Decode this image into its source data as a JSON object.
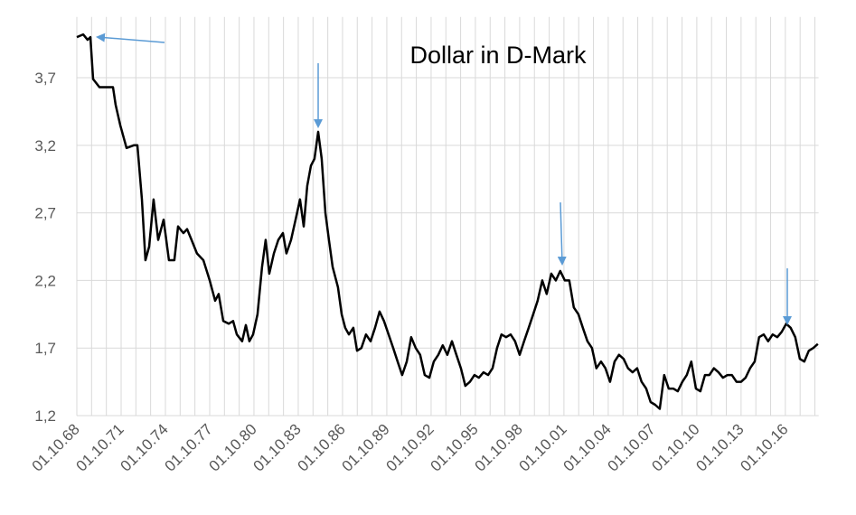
{
  "chart_data": {
    "type": "line",
    "title": "Dollar in D-Mark",
    "color": "#000000",
    "grid": true,
    "xlim": [
      1968.75,
      2019.0
    ],
    "ylim": [
      1.2,
      4.15
    ],
    "yticks": [
      {
        "value": 1.2,
        "label": "1,2"
      },
      {
        "value": 1.7,
        "label": "1,7"
      },
      {
        "value": 2.2,
        "label": "2,2"
      },
      {
        "value": 2.7,
        "label": "2,7"
      },
      {
        "value": 3.2,
        "label": "3,2"
      },
      {
        "value": 3.7,
        "label": "3,7"
      }
    ],
    "xticks": [
      {
        "value": 1968.75,
        "label": "01.10.68"
      },
      {
        "value": 1969.75,
        "label": null
      },
      {
        "value": 1970.75,
        "label": null
      },
      {
        "value": 1971.75,
        "label": "01.10.71"
      },
      {
        "value": 1972.75,
        "label": null
      },
      {
        "value": 1973.75,
        "label": null
      },
      {
        "value": 1974.75,
        "label": "01.10.74"
      },
      {
        "value": 1975.75,
        "label": null
      },
      {
        "value": 1976.75,
        "label": null
      },
      {
        "value": 1977.75,
        "label": "01.10.77"
      },
      {
        "value": 1978.75,
        "label": null
      },
      {
        "value": 1979.75,
        "label": null
      },
      {
        "value": 1980.75,
        "label": "01.10.80"
      },
      {
        "value": 1981.75,
        "label": null
      },
      {
        "value": 1982.75,
        "label": null
      },
      {
        "value": 1983.75,
        "label": "01.10.83"
      },
      {
        "value": 1984.75,
        "label": null
      },
      {
        "value": 1985.75,
        "label": null
      },
      {
        "value": 1986.75,
        "label": "01.10.86"
      },
      {
        "value": 1987.75,
        "label": null
      },
      {
        "value": 1988.75,
        "label": null
      },
      {
        "value": 1989.75,
        "label": "01.10.89"
      },
      {
        "value": 1990.75,
        "label": null
      },
      {
        "value": 1991.75,
        "label": null
      },
      {
        "value": 1992.75,
        "label": "01.10.92"
      },
      {
        "value": 1993.75,
        "label": null
      },
      {
        "value": 1994.75,
        "label": null
      },
      {
        "value": 1995.75,
        "label": "01.10.95"
      },
      {
        "value": 1996.75,
        "label": null
      },
      {
        "value": 1997.75,
        "label": null
      },
      {
        "value": 1998.75,
        "label": "01.10.98"
      },
      {
        "value": 1999.75,
        "label": null
      },
      {
        "value": 2000.75,
        "label": null
      },
      {
        "value": 2001.75,
        "label": "01.10.01"
      },
      {
        "value": 2002.75,
        "label": null
      },
      {
        "value": 2003.75,
        "label": null
      },
      {
        "value": 2004.75,
        "label": "01.10.04"
      },
      {
        "value": 2005.75,
        "label": null
      },
      {
        "value": 2006.75,
        "label": null
      },
      {
        "value": 2007.75,
        "label": "01.10.07"
      },
      {
        "value": 2008.75,
        "label": null
      },
      {
        "value": 2009.75,
        "label": null
      },
      {
        "value": 2010.75,
        "label": "01.10.10"
      },
      {
        "value": 2011.75,
        "label": null
      },
      {
        "value": 2012.75,
        "label": null
      },
      {
        "value": 2013.75,
        "label": "01.10.13"
      },
      {
        "value": 2014.75,
        "label": null
      },
      {
        "value": 2015.75,
        "label": null
      },
      {
        "value": 2016.75,
        "label": "01.10.16"
      },
      {
        "value": 2017.75,
        "label": null
      },
      {
        "value": 2018.75,
        "label": null
      }
    ],
    "x": [
      1968.75,
      1969.18,
      1969.48,
      1969.67,
      1969.85,
      1970.28,
      1971.2,
      1971.38,
      1971.69,
      1972.12,
      1972.61,
      1972.85,
      1973.16,
      1973.4,
      1973.65,
      1973.95,
      1974.26,
      1974.63,
      1974.99,
      1975.36,
      1975.61,
      1975.97,
      1976.22,
      1976.52,
      1976.89,
      1977.32,
      1977.75,
      1978.12,
      1978.36,
      1978.67,
      1979.04,
      1979.34,
      1979.59,
      1979.95,
      1980.2,
      1980.44,
      1980.69,
      1980.99,
      1981.3,
      1981.54,
      1981.79,
      1982.1,
      1982.4,
      1982.71,
      1982.95,
      1983.26,
      1983.57,
      1983.87,
      1984.12,
      1984.36,
      1984.61,
      1984.85,
      1985.1,
      1985.34,
      1985.59,
      1985.83,
      1986.08,
      1986.44,
      1986.69,
      1986.93,
      1987.18,
      1987.48,
      1987.73,
      1988.03,
      1988.34,
      1988.65,
      1988.95,
      1989.26,
      1989.56,
      1989.87,
      1990.18,
      1990.48,
      1990.79,
      1991.1,
      1991.4,
      1991.71,
      1992.01,
      1992.32,
      1992.63,
      1992.93,
      1993.24,
      1993.54,
      1993.85,
      1994.16,
      1994.46,
      1994.77,
      1995.07,
      1995.38,
      1995.69,
      1995.99,
      1996.3,
      1996.61,
      1996.91,
      1997.22,
      1997.52,
      1997.83,
      1998.14,
      1998.44,
      1998.75,
      1999.05,
      1999.36,
      1999.67,
      1999.97,
      2000.28,
      2000.58,
      2000.89,
      2001.2,
      2001.5,
      2001.81,
      2002.11,
      2002.42,
      2002.73,
      2003.03,
      2003.34,
      2003.65,
      2003.95,
      2004.26,
      2004.56,
      2004.87,
      2005.18,
      2005.48,
      2005.79,
      2006.09,
      2006.4,
      2006.71,
      2007.01,
      2007.32,
      2007.62,
      2007.93,
      2008.24,
      2008.54,
      2008.85,
      2009.16,
      2009.46,
      2009.77,
      2010.07,
      2010.38,
      2010.69,
      2010.99,
      2011.3,
      2011.6,
      2011.91,
      2012.22,
      2012.52,
      2012.83,
      2013.13,
      2013.44,
      2013.75,
      2014.05,
      2014.36,
      2014.67,
      2014.97,
      2015.28,
      2015.58,
      2015.89,
      2016.2,
      2016.5,
      2016.81,
      2017.11,
      2017.42,
      2017.73,
      2018.03,
      2018.34,
      2018.64,
      2018.95
    ],
    "values": [
      4.0,
      4.02,
      3.98,
      4.0,
      3.69,
      3.63,
      3.63,
      3.5,
      3.35,
      3.18,
      3.2,
      3.2,
      2.8,
      2.35,
      2.45,
      2.8,
      2.5,
      2.65,
      2.35,
      2.35,
      2.6,
      2.55,
      2.58,
      2.5,
      2.4,
      2.35,
      2.2,
      2.05,
      2.1,
      1.9,
      1.88,
      1.9,
      1.8,
      1.75,
      1.87,
      1.75,
      1.8,
      1.95,
      2.3,
      2.5,
      2.25,
      2.4,
      2.5,
      2.55,
      2.4,
      2.5,
      2.65,
      2.8,
      2.6,
      2.9,
      3.05,
      3.1,
      3.3,
      3.1,
      2.7,
      2.5,
      2.3,
      2.15,
      1.95,
      1.85,
      1.8,
      1.85,
      1.68,
      1.7,
      1.8,
      1.75,
      1.85,
      1.97,
      1.9,
      1.8,
      1.7,
      1.6,
      1.5,
      1.6,
      1.78,
      1.7,
      1.65,
      1.5,
      1.48,
      1.6,
      1.65,
      1.72,
      1.65,
      1.75,
      1.65,
      1.55,
      1.42,
      1.45,
      1.5,
      1.48,
      1.52,
      1.5,
      1.55,
      1.7,
      1.8,
      1.78,
      1.8,
      1.75,
      1.65,
      1.75,
      1.85,
      1.95,
      2.05,
      2.2,
      2.1,
      2.25,
      2.2,
      2.27,
      2.2,
      2.2,
      2.0,
      1.95,
      1.85,
      1.75,
      1.7,
      1.55,
      1.6,
      1.55,
      1.45,
      1.6,
      1.65,
      1.62,
      1.55,
      1.52,
      1.55,
      1.45,
      1.4,
      1.3,
      1.28,
      1.25,
      1.5,
      1.4,
      1.4,
      1.38,
      1.45,
      1.5,
      1.6,
      1.4,
      1.38,
      1.5,
      1.5,
      1.55,
      1.52,
      1.48,
      1.5,
      1.5,
      1.45,
      1.45,
      1.48,
      1.55,
      1.6,
      1.78,
      1.8,
      1.75,
      1.8,
      1.78,
      1.82,
      1.88,
      1.85,
      1.78,
      1.62,
      1.6,
      1.68,
      1.7,
      1.73
    ]
  }
}
